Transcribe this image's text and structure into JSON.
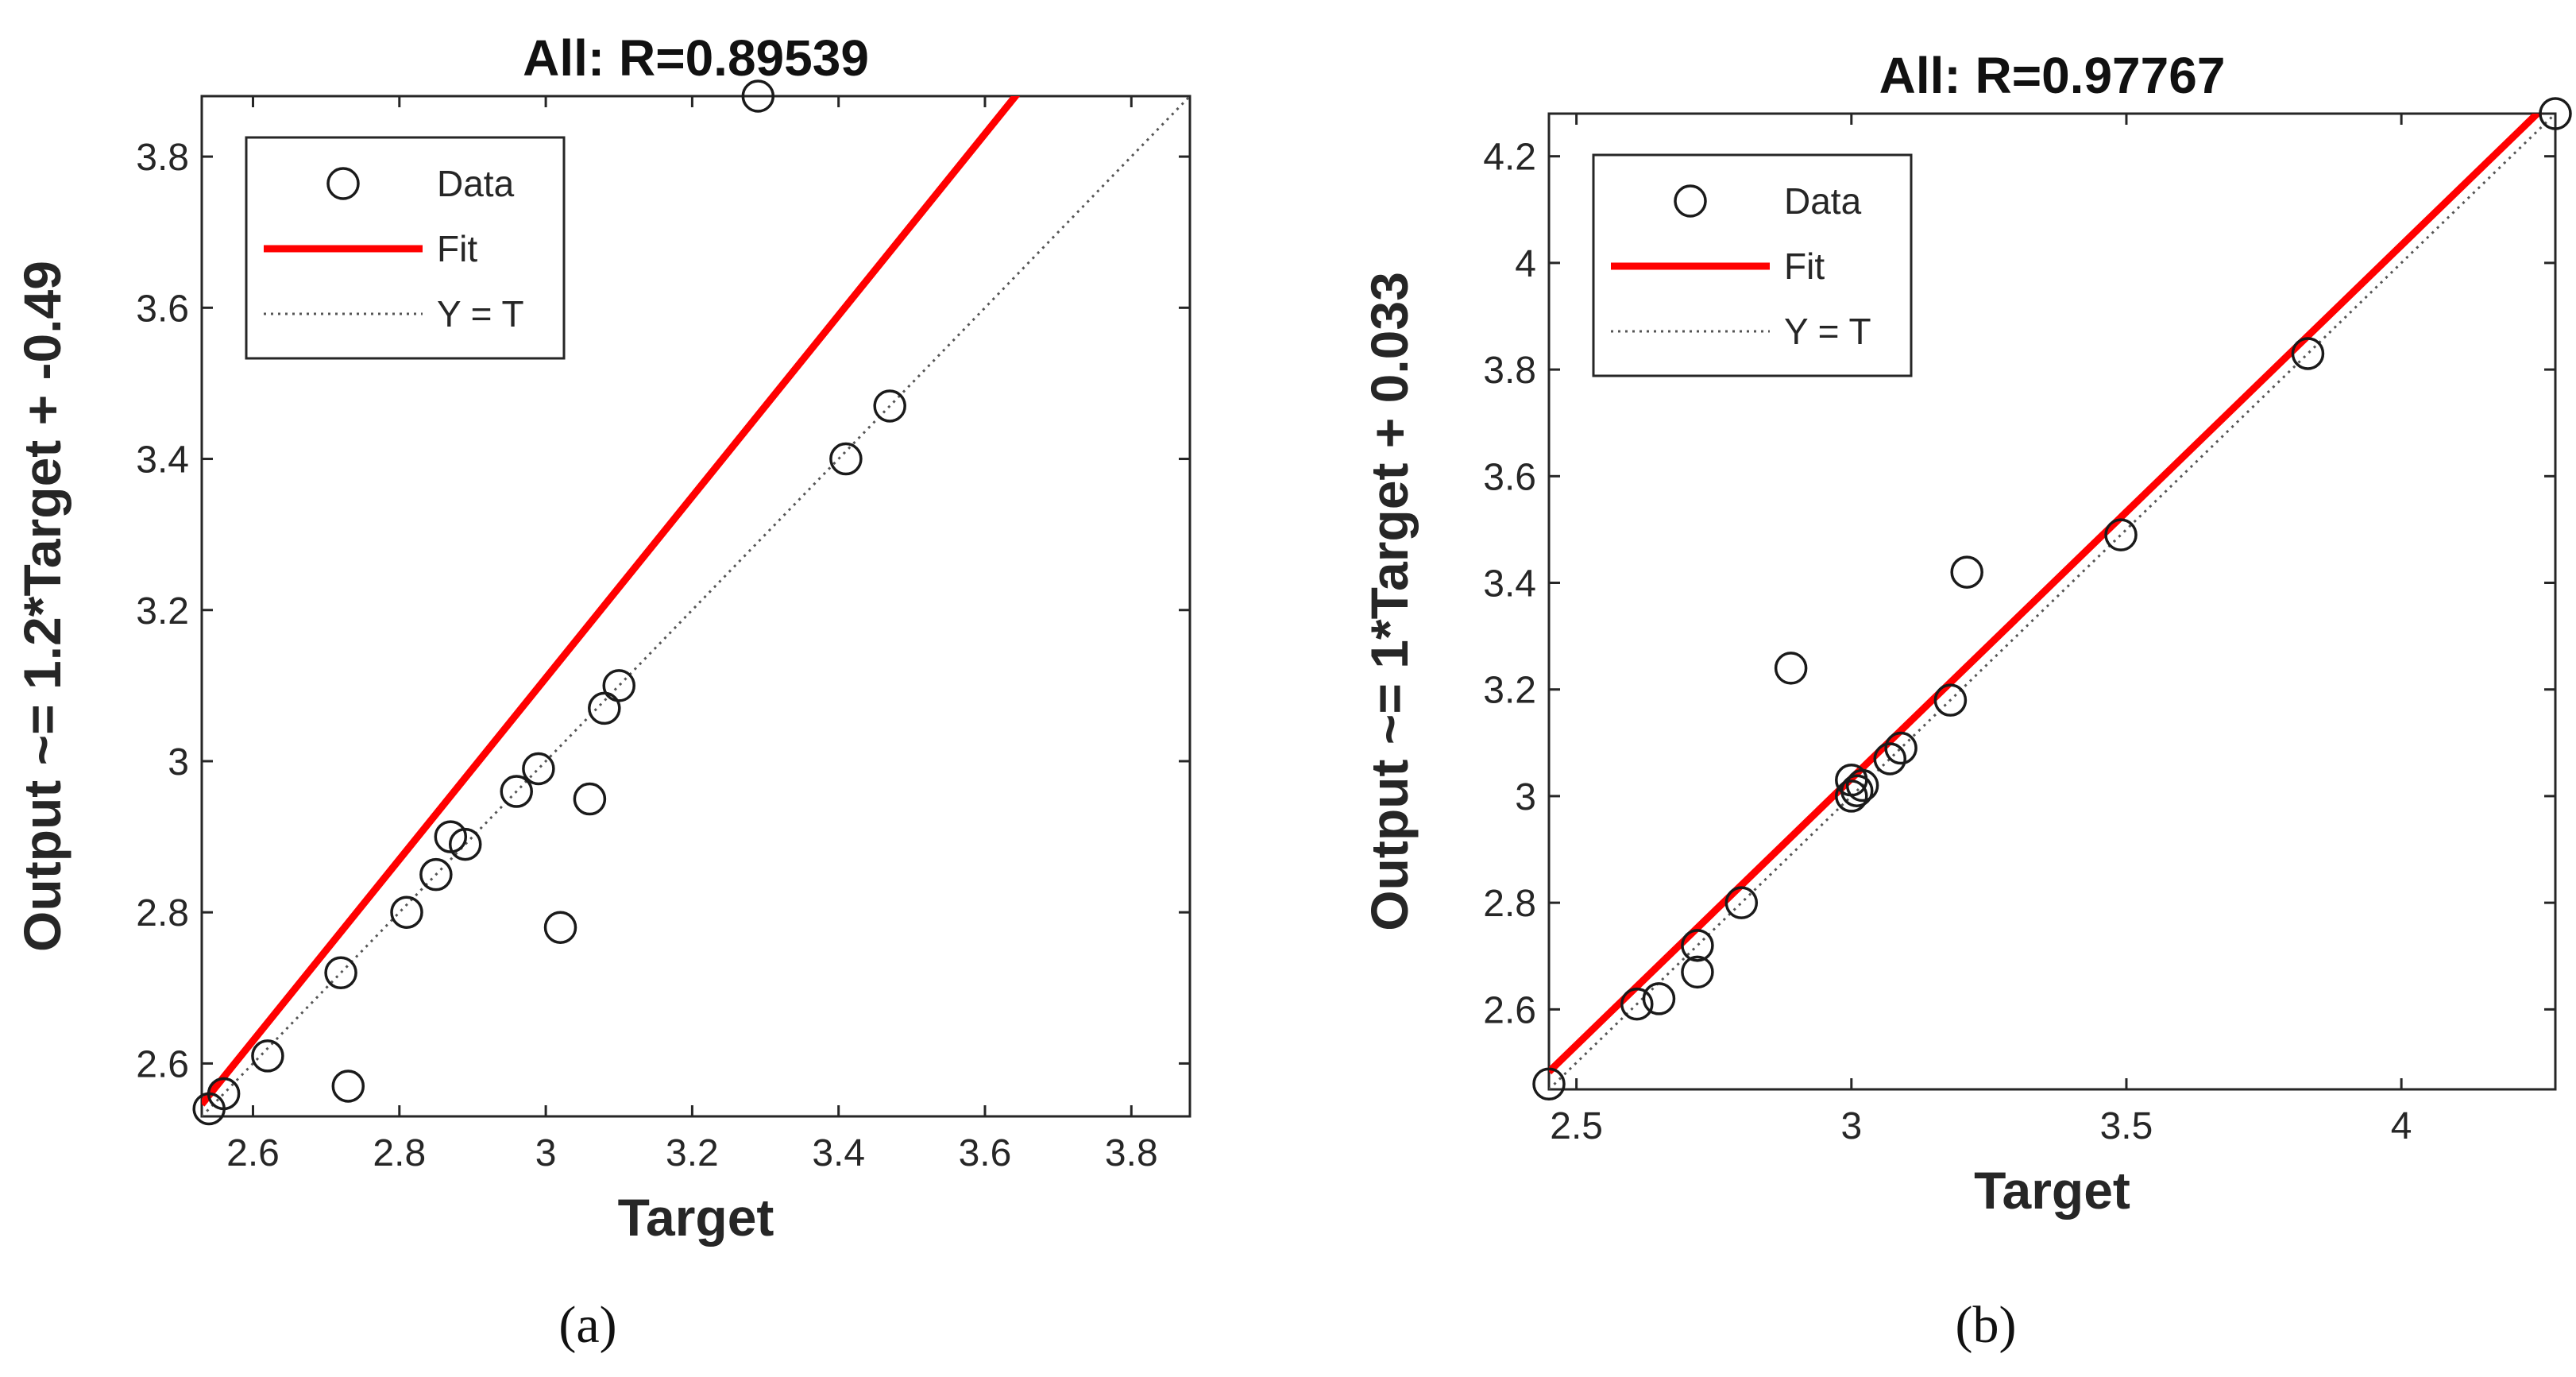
{
  "chart_data": [
    {
      "type": "scatter",
      "title": "All: R=0.89539",
      "xlabel": "Target",
      "ylabel": "Output ~= 1.2*Target + -0.49",
      "xlim": [
        2.53,
        3.88
      ],
      "ylim": [
        2.53,
        3.88
      ],
      "xticks": [
        "2.6",
        "2.8",
        "3",
        "3.2",
        "3.4",
        "3.6",
        "3.8"
      ],
      "yticks": [
        "2.6",
        "2.8",
        "3",
        "3.2",
        "3.4",
        "3.6",
        "3.8"
      ],
      "legend": {
        "position": "top-left",
        "entries": [
          "Data",
          "Fit",
          "Y = T"
        ]
      },
      "fit": {
        "slope": 1.2,
        "intercept": -0.49,
        "color": "#ff0000"
      },
      "identity_line": true,
      "grid": false,
      "series": [
        {
          "name": "Data",
          "marker": "open-circle",
          "points": [
            [
              2.54,
              2.54
            ],
            [
              2.56,
              2.56
            ],
            [
              2.62,
              2.61
            ],
            [
              2.72,
              2.72
            ],
            [
              2.73,
              2.57
            ],
            [
              2.81,
              2.8
            ],
            [
              2.85,
              2.85
            ],
            [
              2.87,
              2.9
            ],
            [
              2.89,
              2.89
            ],
            [
              2.96,
              2.96
            ],
            [
              2.99,
              2.99
            ],
            [
              3.02,
              2.78
            ],
            [
              3.06,
              2.95
            ],
            [
              3.08,
              3.07
            ],
            [
              3.1,
              3.1
            ],
            [
              3.29,
              3.88
            ],
            [
              3.41,
              3.4
            ],
            [
              3.47,
              3.47
            ]
          ]
        },
        {
          "name": "Fit",
          "line_color": "#ff0000"
        },
        {
          "name": "Y = T",
          "line_style": "dotted"
        }
      ],
      "caption": "(a)"
    },
    {
      "type": "scatter",
      "title": "All: R=0.97767",
      "xlabel": "Target",
      "ylabel": "Output ~= 1*Target + 0.033",
      "xlim": [
        2.45,
        4.28
      ],
      "ylim": [
        2.45,
        4.28
      ],
      "xticks": [
        "2.5",
        "3",
        "3.5",
        "4"
      ],
      "yticks": [
        "2.6",
        "2.8",
        "3",
        "3.2",
        "3.4",
        "3.6",
        "3.8",
        "4",
        "4.2"
      ],
      "legend": {
        "position": "top-left",
        "entries": [
          "Data",
          "Fit",
          "Y = T"
        ]
      },
      "fit": {
        "slope": 1,
        "intercept": 0.033,
        "color": "#ff0000"
      },
      "identity_line": true,
      "grid": false,
      "series": [
        {
          "name": "Data",
          "marker": "open-circle",
          "points": [
            [
              2.45,
              2.46
            ],
            [
              2.61,
              2.61
            ],
            [
              2.65,
              2.62
            ],
            [
              2.72,
              2.67
            ],
            [
              2.72,
              2.72
            ],
            [
              2.8,
              2.8
            ],
            [
              2.89,
              3.24
            ],
            [
              3.0,
              3.0
            ],
            [
              3.0,
              3.03
            ],
            [
              3.01,
              3.01
            ],
            [
              3.02,
              3.02
            ],
            [
              3.07,
              3.07
            ],
            [
              3.09,
              3.09
            ],
            [
              3.18,
              3.18
            ],
            [
              3.21,
              3.42
            ],
            [
              3.49,
              3.49
            ],
            [
              3.83,
              3.83
            ],
            [
              4.28,
              4.28
            ]
          ]
        },
        {
          "name": "Fit",
          "line_color": "#ff0000"
        },
        {
          "name": "Y = T",
          "line_style": "dotted"
        }
      ],
      "caption": "(b)"
    }
  ]
}
